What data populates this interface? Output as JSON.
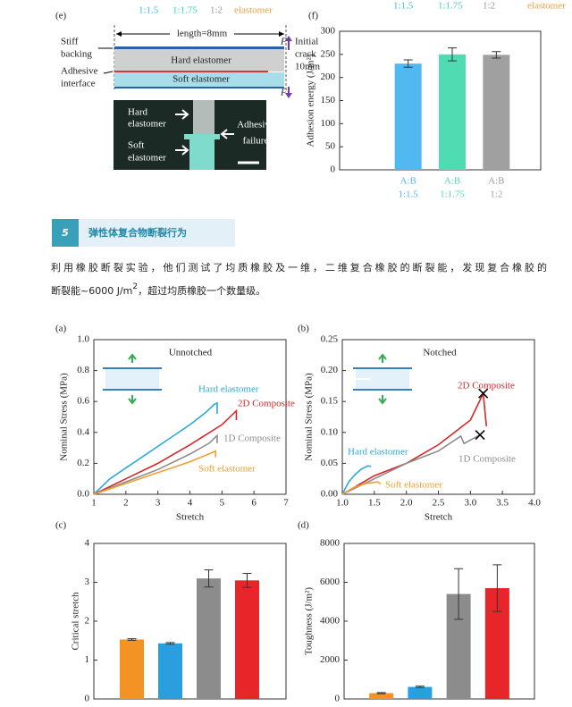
{
  "panel_e": {
    "label": "(e)",
    "legend": [
      "1:1.5",
      "1:1.75",
      "1:2",
      "elastomer"
    ],
    "legend_colors": [
      "#41b8f0",
      "#3fd6ae",
      "#9a9a9a",
      "#f0a040"
    ],
    "stiff_backing": [
      "Stiff",
      "backing"
    ],
    "adhesive_interface": [
      "Adhesive",
      "interface"
    ],
    "length": "length=8mm",
    "hard": "Hard elastomer",
    "soft": "Soft elastomer",
    "force": "F",
    "crack": [
      "Initial",
      "crack",
      "10mm"
    ],
    "photo": {
      "hard": [
        "Hard",
        "elastomer"
      ],
      "soft": [
        "Soft",
        "elastomer"
      ],
      "failure": [
        "Adhesive",
        "failure"
      ]
    }
  },
  "section": {
    "number": "5",
    "title": "弹性体复合物断裂行为"
  },
  "paragraph": {
    "line1": "利用橡胶断裂实验，他们测试了均质橡胶及一维，二维复合橡胶的断裂能，发现复合橡胶的",
    "line2_start": "断裂能~6000 J/m",
    "sup": "2",
    "line2_end": "，超过均质橡胶一个数量级。"
  },
  "chart_data": [
    {
      "type": "bar",
      "panel": "(f)",
      "header": [
        "1:1.5",
        "1:1.75",
        "1:2",
        "elastomer"
      ],
      "header_colors": [
        "#41b8f0",
        "#3fd6ae",
        "#9a9a9a",
        "#f0a040"
      ],
      "ylabel": "Adhesion energy (J/m²)",
      "categories": [
        "A:B",
        "A:B",
        "A:B"
      ],
      "category_sublabels": [
        "1:1.5",
        "1:1.75",
        "1:2"
      ],
      "values": [
        230,
        250,
        249
      ],
      "errors": [
        8,
        14,
        7
      ],
      "colors": [
        "#52b8f2",
        "#4fdcb2",
        "#a0a0a0"
      ],
      "ylim": [
        0,
        300
      ],
      "yticks": [
        0,
        50,
        100,
        150,
        200,
        250,
        300
      ]
    },
    {
      "type": "line",
      "panel": "(a)",
      "title": "Unnotched",
      "xlabel": "Stretch",
      "ylabel": "Nominal Stress (MPa)",
      "xlim": [
        1,
        7
      ],
      "xticks": [
        1,
        2,
        3,
        4,
        5,
        6,
        7
      ],
      "ylim": [
        0,
        1
      ],
      "yticks": [
        {
          "value": 0,
          "label": "0.0"
        },
        0.2,
        0.4,
        0.6,
        0.8,
        {
          "value": 1,
          "label": "1.0"
        }
      ],
      "series": [
        {
          "name": "Hard elastomer",
          "color": "#29a9d9",
          "x": [
            1,
            1.5,
            2,
            2.5,
            3,
            3.5,
            4,
            4.5,
            4.75,
            4.85,
            4.85
          ],
          "values": [
            0,
            0.1,
            0.17,
            0.24,
            0.31,
            0.38,
            0.45,
            0.53,
            0.58,
            0.59,
            0.52
          ]
        },
        {
          "name": "2D Composite",
          "color": "#d62728",
          "x": [
            1,
            2,
            3,
            4,
            5,
            5.45,
            5.45
          ],
          "values": [
            0,
            0.1,
            0.2,
            0.32,
            0.45,
            0.54,
            0.48
          ]
        },
        {
          "name": "1D Composite",
          "color": "#8c8c8c",
          "x": [
            1,
            2,
            3,
            4,
            4.6,
            4.85,
            4.85
          ],
          "values": [
            0,
            0.08,
            0.16,
            0.26,
            0.33,
            0.38,
            0.33
          ]
        },
        {
          "name": "Soft elastomer",
          "color": "#f0a030",
          "x": [
            1,
            2,
            3,
            4,
            4.7,
            4.8,
            4.8
          ],
          "values": [
            0,
            0.07,
            0.14,
            0.21,
            0.27,
            0.28,
            0.24
          ]
        }
      ]
    },
    {
      "type": "line",
      "panel": "(b)",
      "title": "Notched",
      "xlabel": "Stretch",
      "ylabel": "Nominal Stress (MPa)",
      "xlim": [
        1,
        4
      ],
      "xticks": [
        {
          "value": 1,
          "label": "1.0"
        },
        1.5,
        {
          "value": 2,
          "label": "2.0"
        },
        2.5,
        {
          "value": 3,
          "label": "3.0"
        },
        3.5,
        {
          "value": 4,
          "label": "4.0"
        }
      ],
      "ylim": [
        0,
        0.25
      ],
      "yticks": [
        {
          "value": 0,
          "label": "0.00"
        },
        0.05,
        {
          "value": 0.1,
          "label": "0.10"
        },
        0.15,
        {
          "value": 0.2,
          "label": "0.20"
        },
        0.25
      ],
      "series": [
        {
          "name": "Hard elastomer",
          "color": "#29a9d9",
          "x": [
            1,
            1.1,
            1.2,
            1.3,
            1.4,
            1.45
          ],
          "values": [
            0,
            0.02,
            0.032,
            0.041,
            0.046,
            0.045
          ]
        },
        {
          "name": "2D Composite",
          "color": "#d62728",
          "failure": true,
          "x": [
            1,
            1.5,
            2,
            2.5,
            3,
            3.2,
            3.25
          ],
          "values": [
            0,
            0.03,
            0.05,
            0.08,
            0.12,
            0.163,
            0.11
          ]
        },
        {
          "name": "1D Composite",
          "color": "#8c8c8c",
          "failure": true,
          "x": [
            1,
            1.5,
            2,
            2.5,
            2.85,
            2.9,
            3.15
          ],
          "values": [
            0,
            0.025,
            0.05,
            0.07,
            0.094,
            0.082,
            0.096
          ]
        },
        {
          "name": "Soft elastomer",
          "color": "#f0a030",
          "x": [
            1,
            1.2,
            1.4,
            1.55,
            1.6
          ],
          "values": [
            0,
            0.012,
            0.018,
            0.02,
            0.017
          ]
        }
      ]
    },
    {
      "type": "bar",
      "panel": "(c)",
      "ylabel": "Critical stretch",
      "values": [
        1.53,
        1.43,
        3.1,
        3.05
      ],
      "errors": [
        0.02,
        0.02,
        0.22,
        0.18
      ],
      "colors": [
        "#f39324",
        "#2a9fe0",
        "#8c8c8c",
        "#e8262a"
      ],
      "ylim": [
        0,
        4
      ],
      "yticks": [
        0,
        1,
        2,
        3,
        4
      ]
    },
    {
      "type": "bar",
      "panel": "(d)",
      "ylabel": "Toughness (J/m²)",
      "values": [
        300,
        620,
        5400,
        5700
      ],
      "errors": [
        30,
        40,
        1300,
        1200
      ],
      "colors": [
        "#f39324",
        "#2a9fe0",
        "#8c8c8c",
        "#e8262a"
      ],
      "ylim": [
        0,
        8000
      ],
      "yticks": [
        0,
        2000,
        4000,
        6000,
        8000
      ]
    }
  ]
}
